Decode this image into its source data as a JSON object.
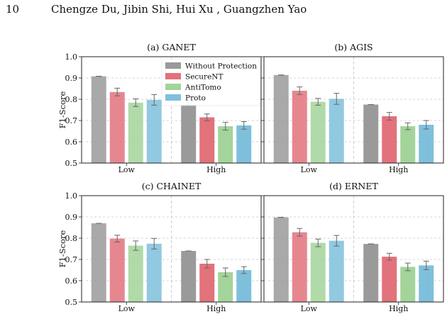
{
  "header": {
    "page_number": "10",
    "authors": "Chengze Du, Jibin Shi, Hui Xu , Guangzhen Yao"
  },
  "legend": {
    "placement": "top-right of panel (a)",
    "entries": [
      "Without Protection",
      "SecureNT",
      "AntiTomo",
      "Proto"
    ]
  },
  "colors": {
    "Without Protection": "#9a9a9a",
    "SecureNT": "#e2727c",
    "AntiTomo": "#a3d49a",
    "Proto": "#7ec0dc"
  },
  "chart_data": [
    {
      "type": "bar",
      "title": "(a) GANET",
      "ylabel": "F1-Score",
      "ylim": [
        0.5,
        1.0
      ],
      "yticks": [
        "0.5",
        "0.6",
        "0.7",
        "0.8",
        "0.9",
        "1.0"
      ],
      "categories": [
        "Low",
        "High"
      ],
      "grid": true,
      "series": [
        {
          "name": "Without Protection",
          "values": [
            0.908,
            0.773
          ],
          "errors": [
            0.0,
            0.0
          ]
        },
        {
          "name": "SecureNT",
          "values": [
            0.834,
            0.715
          ],
          "errors": [
            0.018,
            0.016
          ]
        },
        {
          "name": "AntiTomo",
          "values": [
            0.784,
            0.673
          ],
          "errors": [
            0.018,
            0.018
          ]
        },
        {
          "name": "Proto",
          "values": [
            0.797,
            0.677
          ],
          "errors": [
            0.025,
            0.018
          ]
        }
      ]
    },
    {
      "type": "bar",
      "title": "(b) AGIS",
      "ylabel": "",
      "ylim": [
        0.5,
        1.0
      ],
      "yticks": [],
      "categories": [
        "Low",
        "High"
      ],
      "grid": true,
      "series": [
        {
          "name": "Without Protection",
          "values": [
            0.914,
            0.775
          ],
          "errors": [
            0.0,
            0.0
          ]
        },
        {
          "name": "SecureNT",
          "values": [
            0.84,
            0.72
          ],
          "errors": [
            0.018,
            0.018
          ]
        },
        {
          "name": "AntiTomo",
          "values": [
            0.788,
            0.673
          ],
          "errors": [
            0.016,
            0.016
          ]
        },
        {
          "name": "Proto",
          "values": [
            0.802,
            0.68
          ],
          "errors": [
            0.026,
            0.02
          ]
        }
      ]
    },
    {
      "type": "bar",
      "title": "(c) CHAINET",
      "ylabel": "F1-Score",
      "ylim": [
        0.5,
        1.0
      ],
      "yticks": [
        "0.5",
        "0.6",
        "0.7",
        "0.8",
        "0.9",
        "1.0"
      ],
      "categories": [
        "Low",
        "High"
      ],
      "grid": true,
      "series": [
        {
          "name": "Without Protection",
          "values": [
            0.87,
            0.74
          ],
          "errors": [
            0.0,
            0.0
          ]
        },
        {
          "name": "SecureNT",
          "values": [
            0.798,
            0.68
          ],
          "errors": [
            0.016,
            0.02
          ]
        },
        {
          "name": "AntiTomo",
          "values": [
            0.765,
            0.64
          ],
          "errors": [
            0.022,
            0.02
          ]
        },
        {
          "name": "Proto",
          "values": [
            0.774,
            0.65
          ],
          "errors": [
            0.025,
            0.016
          ]
        }
      ]
    },
    {
      "type": "bar",
      "title": "(d) ERNET",
      "ylabel": "",
      "ylim": [
        0.5,
        1.0
      ],
      "yticks": [],
      "categories": [
        "Low",
        "High"
      ],
      "grid": true,
      "series": [
        {
          "name": "Without Protection",
          "values": [
            0.898,
            0.773
          ],
          "errors": [
            0.0,
            0.0
          ]
        },
        {
          "name": "SecureNT",
          "values": [
            0.828,
            0.713
          ],
          "errors": [
            0.018,
            0.016
          ]
        },
        {
          "name": "AntiTomo",
          "values": [
            0.778,
            0.665
          ],
          "errors": [
            0.018,
            0.018
          ]
        },
        {
          "name": "Proto",
          "values": [
            0.788,
            0.672
          ],
          "errors": [
            0.025,
            0.02
          ]
        }
      ]
    }
  ]
}
